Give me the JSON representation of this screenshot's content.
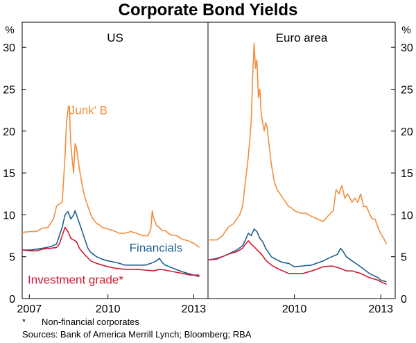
{
  "chart_data": {
    "type": "line",
    "title": "Corporate Bond Yields",
    "unit_label": "%",
    "ylim": [
      0,
      33
    ],
    "yticks": [
      0,
      5,
      10,
      15,
      20,
      25,
      30
    ],
    "grid": false,
    "panels": [
      {
        "title": "US",
        "xlim": [
          2007.0,
          2013.5
        ],
        "xticks": [
          {
            "value": 2007.25,
            "label": "2007"
          },
          {
            "value": 2010.0,
            "label": "2010"
          },
          {
            "value": 2013.0,
            "label": "2013"
          }
        ],
        "series": [
          {
            "name": "'Junk' B",
            "color": "#f28e3c",
            "x": [
              2007.0,
              2007.3,
              2007.5,
              2007.7,
              2007.9,
              2008.0,
              2008.1,
              2008.2,
              2008.3,
              2008.4,
              2008.5,
              2008.55,
              2008.6,
              2008.65,
              2008.7,
              2008.75,
              2008.8,
              2008.85,
              2008.9,
              2009.0,
              2009.1,
              2009.2,
              2009.3,
              2009.4,
              2009.5,
              2009.6,
              2009.7,
              2009.8,
              2009.9,
              2010.0,
              2010.2,
              2010.4,
              2010.6,
              2010.8,
              2011.0,
              2011.2,
              2011.4,
              2011.5,
              2011.55,
              2011.6,
              2011.65,
              2011.7,
              2011.8,
              2011.9,
              2012.0,
              2012.2,
              2012.4,
              2012.6,
              2012.8,
              2013.0,
              2013.2
            ],
            "values": [
              7.9,
              8.0,
              8.0,
              8.4,
              8.5,
              9.0,
              9.6,
              11.0,
              11.3,
              11.5,
              17.0,
              21.0,
              22.5,
              23.0,
              18.5,
              16.5,
              15.0,
              18.5,
              18.0,
              15.5,
              13.5,
              12.0,
              11.0,
              10.0,
              9.4,
              9.0,
              8.8,
              8.5,
              8.4,
              8.3,
              8.1,
              7.8,
              7.8,
              8.0,
              7.8,
              7.5,
              7.5,
              8.3,
              10.5,
              9.5,
              9.2,
              8.7,
              8.5,
              8.1,
              8.1,
              7.6,
              7.5,
              7.1,
              6.9,
              6.6,
              6.1
            ]
          },
          {
            "name": "Financials",
            "color": "#1f5f8b",
            "x": [
              2007.0,
              2007.3,
              2007.5,
              2007.7,
              2008.0,
              2008.2,
              2008.3,
              2008.4,
              2008.5,
              2008.6,
              2008.7,
              2008.8,
              2008.85,
              2008.9,
              2009.0,
              2009.1,
              2009.2,
              2009.3,
              2009.4,
              2009.6,
              2009.8,
              2010.0,
              2010.3,
              2010.6,
              2011.0,
              2011.3,
              2011.5,
              2011.7,
              2011.8,
              2011.9,
              2012.0,
              2012.3,
              2012.6,
              2012.9,
              2013.2
            ],
            "values": [
              5.8,
              5.8,
              5.9,
              6.0,
              6.2,
              6.5,
              7.5,
              8.5,
              10.0,
              10.4,
              9.5,
              10.0,
              10.5,
              10.0,
              9.0,
              8.0,
              7.0,
              6.0,
              5.5,
              5.0,
              4.7,
              4.5,
              4.3,
              4.0,
              4.0,
              4.0,
              4.2,
              4.5,
              4.8,
              4.3,
              4.0,
              3.6,
              3.2,
              2.9,
              2.6
            ]
          },
          {
            "name": "Investment grade*",
            "color": "#d1182f",
            "x": [
              2007.0,
              2007.3,
              2007.5,
              2007.7,
              2008.0,
              2008.2,
              2008.3,
              2008.4,
              2008.5,
              2008.6,
              2008.7,
              2008.8,
              2008.9,
              2009.0,
              2009.2,
              2009.4,
              2009.6,
              2009.8,
              2010.0,
              2010.3,
              2010.6,
              2011.0,
              2011.3,
              2011.6,
              2011.8,
              2012.0,
              2012.3,
              2012.6,
              2012.9,
              2013.2
            ],
            "values": [
              5.8,
              5.7,
              5.7,
              5.9,
              6.0,
              6.1,
              6.5,
              7.5,
              8.5,
              8.0,
              7.2,
              7.0,
              6.8,
              6.0,
              5.2,
              4.5,
              4.2,
              4.0,
              3.8,
              3.6,
              3.5,
              3.5,
              3.4,
              3.3,
              3.5,
              3.4,
              3.2,
              3.0,
              2.8,
              2.8
            ]
          }
        ],
        "labels": [
          {
            "text": "'Junk' B",
            "series": "'Junk' B"
          },
          {
            "text": "Financials",
            "series": "Financials"
          },
          {
            "text": "Investment grade*",
            "series": "Investment grade*"
          }
        ]
      },
      {
        "title": "Euro area",
        "xlim": [
          2007.0,
          2013.5
        ],
        "xticks": [
          {
            "value": 2010.0,
            "label": "2010"
          },
          {
            "value": 2013.0,
            "label": "2013"
          }
        ],
        "series": [
          {
            "name": "'Junk' B",
            "color": "#f28e3c",
            "x": [
              2007.0,
              2007.3,
              2007.5,
              2007.7,
              2007.9,
              2008.0,
              2008.1,
              2008.2,
              2008.3,
              2008.4,
              2008.5,
              2008.55,
              2008.6,
              2008.65,
              2008.7,
              2008.75,
              2008.8,
              2008.85,
              2008.9,
              2008.95,
              2009.0,
              2009.05,
              2009.1,
              2009.2,
              2009.3,
              2009.4,
              2009.5,
              2009.6,
              2009.7,
              2009.8,
              2009.9,
              2010.0,
              2010.2,
              2010.4,
              2010.6,
              2010.8,
              2011.0,
              2011.2,
              2011.35,
              2011.45,
              2011.55,
              2011.65,
              2011.75,
              2011.85,
              2012.0,
              2012.1,
              2012.2,
              2012.3,
              2012.4,
              2012.5,
              2012.6,
              2012.7,
              2012.8,
              2012.9,
              2013.0,
              2013.1,
              2013.2
            ],
            "values": [
              7.0,
              7.0,
              7.5,
              8.5,
              9.0,
              9.5,
              10.0,
              11.0,
              14.0,
              17.0,
              21.0,
              26.5,
              30.5,
              27.5,
              28.5,
              24.0,
              25.0,
              22.0,
              21.0,
              20.0,
              21.0,
              20.5,
              19.0,
              16.0,
              14.0,
              13.0,
              12.5,
              12.0,
              11.5,
              11.0,
              10.8,
              10.5,
              10.2,
              10.2,
              9.8,
              9.5,
              9.2,
              10.0,
              10.5,
              13.0,
              12.5,
              13.5,
              12.0,
              12.5,
              11.5,
              12.0,
              11.5,
              12.5,
              11.0,
              11.0,
              10.2,
              9.5,
              9.5,
              8.5,
              7.7,
              7.2,
              6.5
            ]
          },
          {
            "name": "Financials",
            "color": "#1f5f8b",
            "x": [
              2007.0,
              2007.3,
              2007.5,
              2007.7,
              2008.0,
              2008.2,
              2008.3,
              2008.4,
              2008.5,
              2008.6,
              2008.7,
              2008.8,
              2008.9,
              2009.0,
              2009.2,
              2009.4,
              2009.6,
              2009.8,
              2010.0,
              2010.3,
              2010.6,
              2011.0,
              2011.3,
              2011.5,
              2011.6,
              2011.7,
              2011.8,
              2012.0,
              2012.3,
              2012.6,
              2012.9,
              2013.0,
              2013.2
            ],
            "values": [
              4.6,
              4.8,
              5.0,
              5.3,
              5.8,
              6.3,
              7.0,
              7.8,
              7.5,
              8.3,
              8.0,
              7.2,
              6.8,
              6.0,
              5.0,
              4.6,
              4.3,
              4.2,
              3.8,
              3.9,
              4.0,
              4.5,
              5.0,
              5.3,
              6.0,
              5.6,
              5.0,
              4.5,
              3.8,
              3.0,
              2.5,
              2.2,
              2.0
            ]
          },
          {
            "name": "Investment grade*",
            "color": "#d1182f",
            "x": [
              2007.0,
              2007.3,
              2007.5,
              2007.7,
              2008.0,
              2008.2,
              2008.3,
              2008.4,
              2008.5,
              2008.6,
              2008.7,
              2008.8,
              2008.9,
              2009.0,
              2009.2,
              2009.4,
              2009.6,
              2009.8,
              2010.0,
              2010.3,
              2010.6,
              2011.0,
              2011.3,
              2011.6,
              2011.8,
              2012.0,
              2012.3,
              2012.6,
              2012.9,
              2013.0,
              2013.2
            ],
            "values": [
              4.6,
              4.7,
              5.0,
              5.3,
              5.6,
              6.0,
              6.5,
              6.9,
              6.5,
              6.2,
              5.8,
              5.5,
              5.1,
              4.6,
              4.0,
              3.6,
              3.3,
              3.0,
              3.0,
              3.0,
              3.3,
              3.8,
              3.9,
              3.6,
              3.3,
              3.3,
              3.0,
              2.5,
              2.2,
              2.0,
              1.7
            ]
          }
        ],
        "labels": []
      }
    ],
    "footnote": {
      "mark": "*",
      "text": "Non-financial corporates"
    },
    "sources": "Sources: Bank of America Merrill Lynch; Bloomberg; RBA"
  }
}
